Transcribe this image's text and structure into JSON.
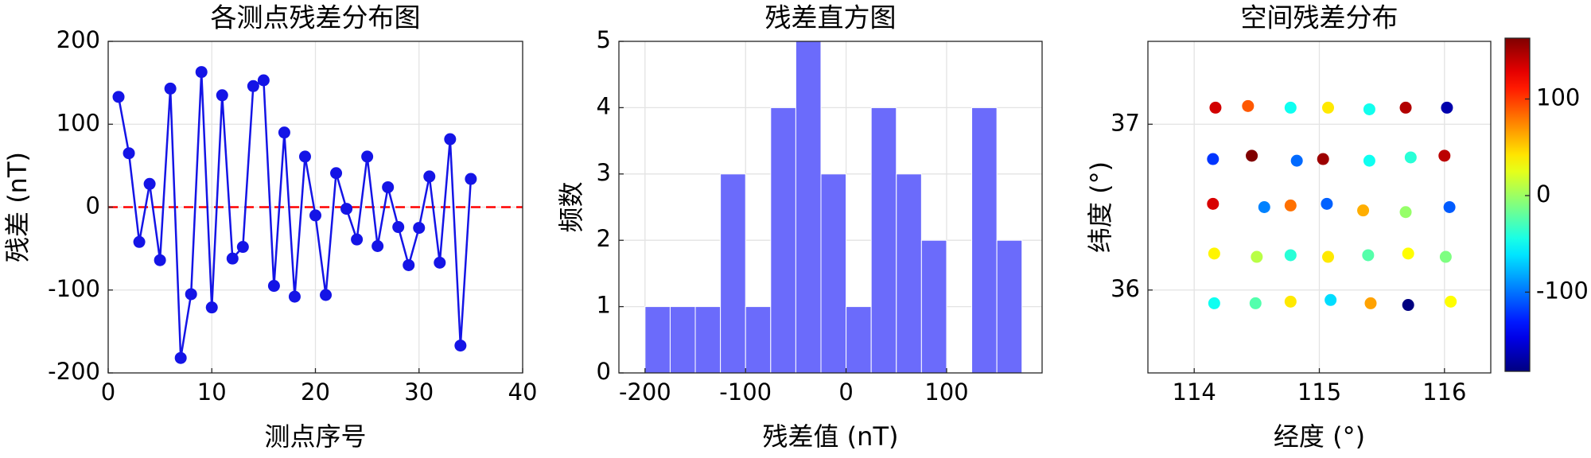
{
  "chart_data": [
    {
      "type": "line",
      "title": "各测点残差分布图",
      "x_label": "测点序号",
      "y_label": "残差 (nT)",
      "x": [
        1,
        2,
        3,
        4,
        5,
        6,
        7,
        8,
        9,
        10,
        11,
        12,
        13,
        14,
        15,
        16,
        17,
        18,
        19,
        20,
        21,
        22,
        23,
        24,
        25,
        26,
        27,
        28,
        29,
        30,
        31,
        32,
        33,
        34,
        35
      ],
      "series": [
        {
          "name": "残差",
          "color": "#1414e6",
          "values": [
            133,
            65,
            -42,
            28,
            -64,
            143,
            -182,
            -105,
            163,
            -121,
            135,
            -62,
            -48,
            146,
            153,
            -95,
            90,
            -108,
            61,
            -10,
            -106,
            41,
            -2,
            -39,
            61,
            -47,
            24,
            -24,
            -70,
            -25,
            37,
            -67,
            82,
            -167,
            34
          ]
        }
      ],
      "hline": 0,
      "hline_color": "#ff0000",
      "xlim": [
        0,
        40
      ],
      "xticks": [
        0,
        10,
        20,
        30,
        40
      ],
      "ylim": [
        -200,
        200
      ],
      "yticks": [
        -200,
        -100,
        0,
        100,
        200
      ],
      "grid": true
    },
    {
      "type": "histogram",
      "title": "残差直方图",
      "x_label": "残差值 (nT)",
      "y_label": "频数",
      "bins": [
        -200,
        -175,
        -150,
        -125,
        -100,
        -75,
        -50,
        -25,
        0,
        25,
        50,
        75,
        100,
        125,
        150,
        175
      ],
      "values": [
        1,
        1,
        1,
        3,
        1,
        4,
        5,
        3,
        1,
        4,
        3,
        2,
        0,
        4,
        2
      ],
      "color": "#6b6bfb",
      "xlim": [
        -226,
        195
      ],
      "xticks": [
        -200,
        -100,
        0,
        100
      ],
      "ylim": [
        0,
        5
      ],
      "yticks": [
        0,
        1,
        2,
        3,
        4,
        5
      ],
      "grid": true
    },
    {
      "type": "scatter",
      "title": "空间残差分布",
      "x_label": "经度 (°)",
      "y_label": "纬度 (°)",
      "x": [
        114.17,
        114.43,
        114.77,
        115.07,
        115.4,
        115.69,
        116.02,
        114.15,
        114.46,
        114.82,
        115.03,
        115.4,
        115.73,
        116.0,
        114.15,
        114.56,
        114.77,
        115.06,
        115.35,
        115.69,
        116.04,
        114.16,
        114.5,
        114.77,
        115.07,
        115.39,
        115.71,
        116.01,
        114.16,
        114.49,
        114.77,
        115.09,
        115.41,
        115.71,
        116.05
      ],
      "y": [
        37.1,
        37.11,
        37.1,
        37.1,
        37.09,
        37.1,
        37.1,
        36.79,
        36.81,
        36.78,
        36.79,
        36.78,
        36.8,
        36.81,
        36.52,
        36.5,
        36.51,
        36.52,
        36.48,
        36.47,
        36.5,
        36.22,
        36.2,
        36.21,
        36.2,
        36.21,
        36.22,
        36.2,
        35.92,
        35.92,
        35.93,
        35.94,
        35.92,
        35.91,
        35.93
      ],
      "values": [
        135,
        90,
        -48,
        41,
        -47,
        146,
        -167,
        -121,
        163,
        -103,
        153,
        -48,
        -39,
        143,
        133,
        -95,
        82,
        -106,
        61,
        -2,
        -108,
        37,
        10,
        -39,
        41,
        -24,
        34,
        -10,
        -48,
        -25,
        41,
        -64,
        65,
        -182,
        34
      ],
      "colormap": "jet",
      "clim": [
        -182,
        163
      ],
      "cticks": [
        -100,
        0,
        100
      ],
      "xlim": [
        113.63,
        116.37
      ],
      "xticks": [
        114,
        115,
        116
      ],
      "ylim": [
        35.5,
        37.5
      ],
      "yticks": [
        36,
        37
      ],
      "grid": true
    }
  ]
}
